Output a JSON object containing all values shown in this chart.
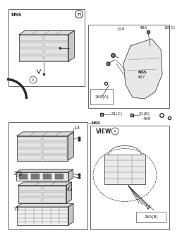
{
  "bg_color": "#ffffff",
  "line_color": "#333333",
  "labels": {
    "nss_top_left": "NSS",
    "label_H": "H",
    "label_A_circle_top": "A",
    "label_260A": "260(A)",
    "label_329": "329",
    "label_486": "486",
    "label_18C": "18(C)",
    "label_nss_right": "NSS",
    "label_487": "487",
    "label_51C": "51(C)",
    "label_51B": "51(B)",
    "label_489": "489",
    "label_nss_mid": "NSS",
    "label_13": "13",
    "label_170": "170",
    "label_14": "14",
    "label_15": "15",
    "label_viewA": "VIEW",
    "label_A_view": "A",
    "label_260B": "260(B)"
  }
}
